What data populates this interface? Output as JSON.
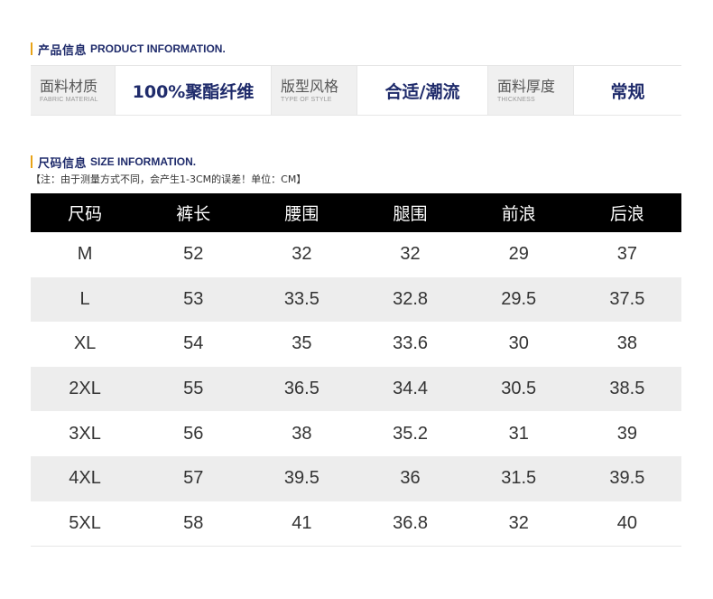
{
  "product_info": {
    "title_cn": "产品信息",
    "title_en": "PRODUCT INFORMATION.",
    "items": [
      {
        "label_cn": "面料材质",
        "label_en": "FABRIC MATERIAL",
        "value": "100%聚酯纤维"
      },
      {
        "label_cn": "版型风格",
        "label_en": "TYPE OF STYLE",
        "value": "合适/潮流"
      },
      {
        "label_cn": "面料厚度",
        "label_en": "THICKNESS",
        "value": "常规"
      }
    ]
  },
  "size_info": {
    "title_cn": "尺码信息",
    "title_en": "SIZE INFORMATION.",
    "note": "【注：由于测量方式不同，会产生1-3CM的误差！单位：CM】",
    "headers": [
      "尺码",
      "裤长",
      "腰围",
      "腿围",
      "前浪",
      "后浪"
    ],
    "rows": [
      [
        "M",
        "52",
        "32",
        "32",
        "29",
        "37"
      ],
      [
        "L",
        "53",
        "33.5",
        "32.8",
        "29.5",
        "37.5"
      ],
      [
        "XL",
        "54",
        "35",
        "33.6",
        "30",
        "38"
      ],
      [
        "2XL",
        "55",
        "36.5",
        "34.4",
        "30.5",
        "38.5"
      ],
      [
        "3XL",
        "56",
        "38",
        "35.2",
        "31",
        "39"
      ],
      [
        "4XL",
        "57",
        "39.5",
        "36",
        "31.5",
        "39.5"
      ],
      [
        "5XL",
        "58",
        "41",
        "36.8",
        "32",
        "40"
      ]
    ]
  },
  "colors": {
    "accent_bar": "#e8a317",
    "heading_navy": "#1f2b6b",
    "table_header_bg": "#000000",
    "row_alt_bg": "#ededed"
  }
}
